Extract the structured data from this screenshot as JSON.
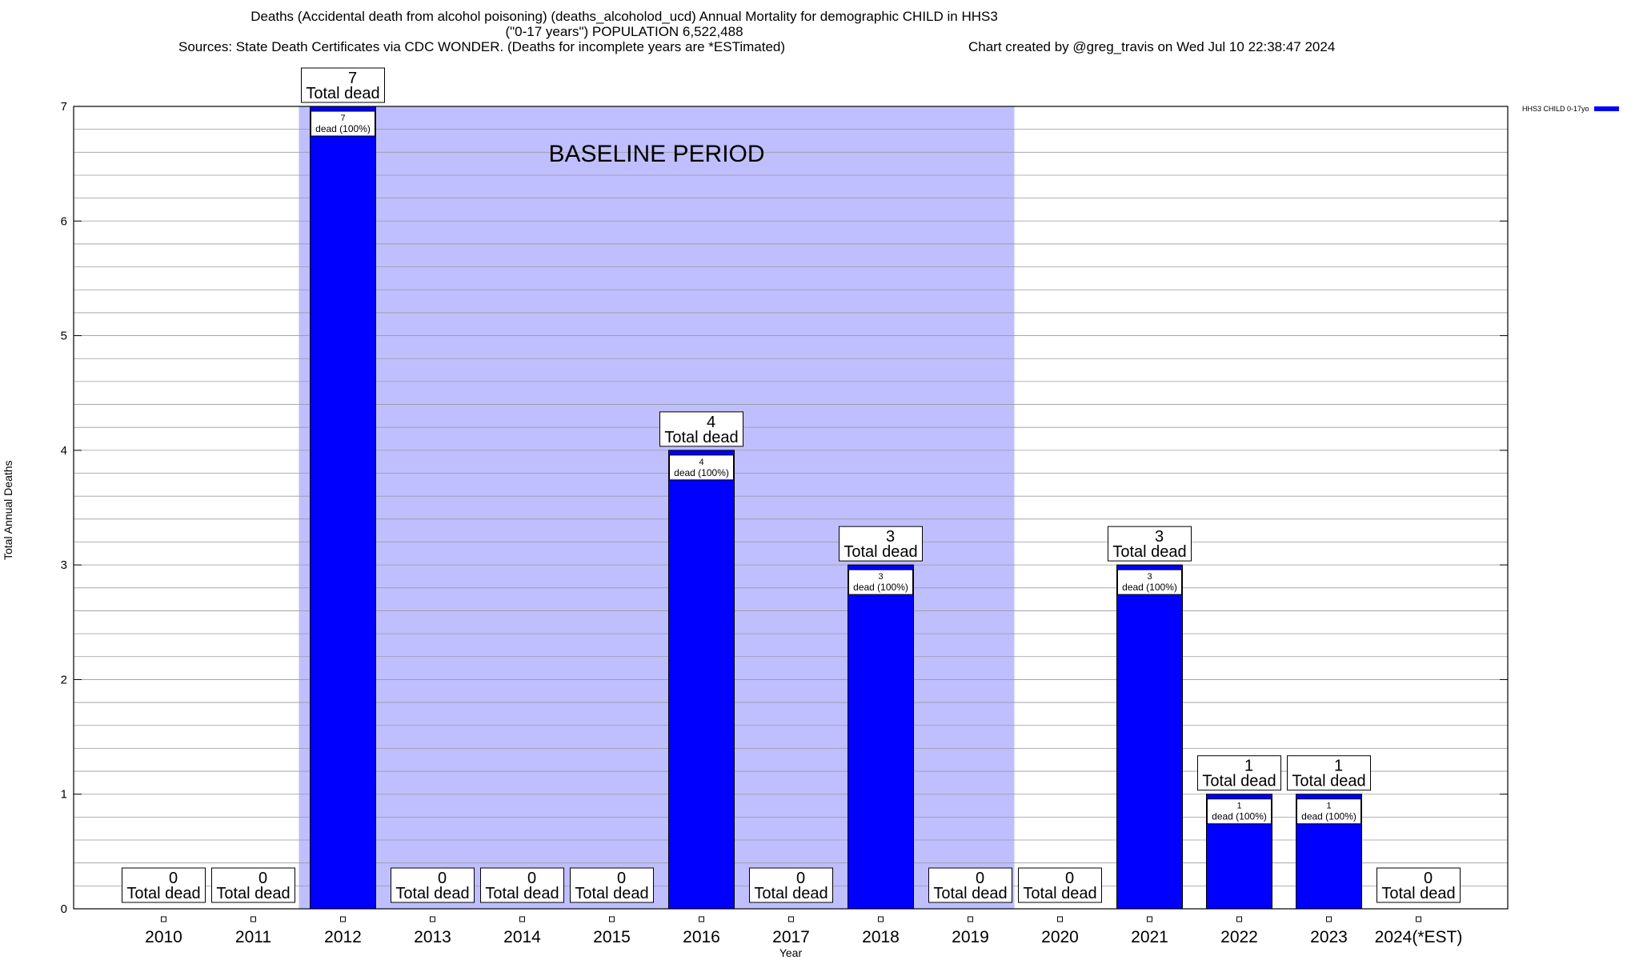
{
  "title": {
    "line1": "Deaths (Accidental death from alcohol poisoning) (deaths_alcoholod_ucd) Annual Mortality for demographic CHILD in HHS3",
    "line2": "(\"0-17 years\") POPULATION 6,522,488",
    "sources": "Sources: State Death Certificates via CDC WONDER. (Deaths for incomplete years are *ESTimated)",
    "credit": "Chart created by @greg_travis on Wed Jul 10 22:38:47 2024"
  },
  "chart_data": {
    "type": "bar",
    "xlabel": "Year",
    "ylabel": "Total Annual Deaths",
    "ylim": [
      0,
      7
    ],
    "yticks": [
      0,
      1,
      2,
      3,
      4,
      5,
      6,
      7
    ],
    "categories": [
      "2010",
      "2011",
      "2012",
      "2013",
      "2014",
      "2015",
      "2016",
      "2017",
      "2018",
      "2019",
      "2020",
      "2021",
      "2022",
      "2023",
      "2024(*EST)"
    ],
    "series": [
      {
        "name": "HHS3 CHILD 0-17yo",
        "color": "#0000ff",
        "values": [
          0,
          0,
          7,
          0,
          0,
          0,
          4,
          0,
          3,
          0,
          0,
          3,
          1,
          1,
          0
        ]
      }
    ],
    "total_label_suffix": "Total dead",
    "bar_label_suffix": "dead (100%)",
    "baseline": {
      "label": "BASELINE PERIOD",
      "from": "2012",
      "to": "2019",
      "color": "#bfbfff"
    },
    "grid": true,
    "legend_position": "top-right"
  }
}
